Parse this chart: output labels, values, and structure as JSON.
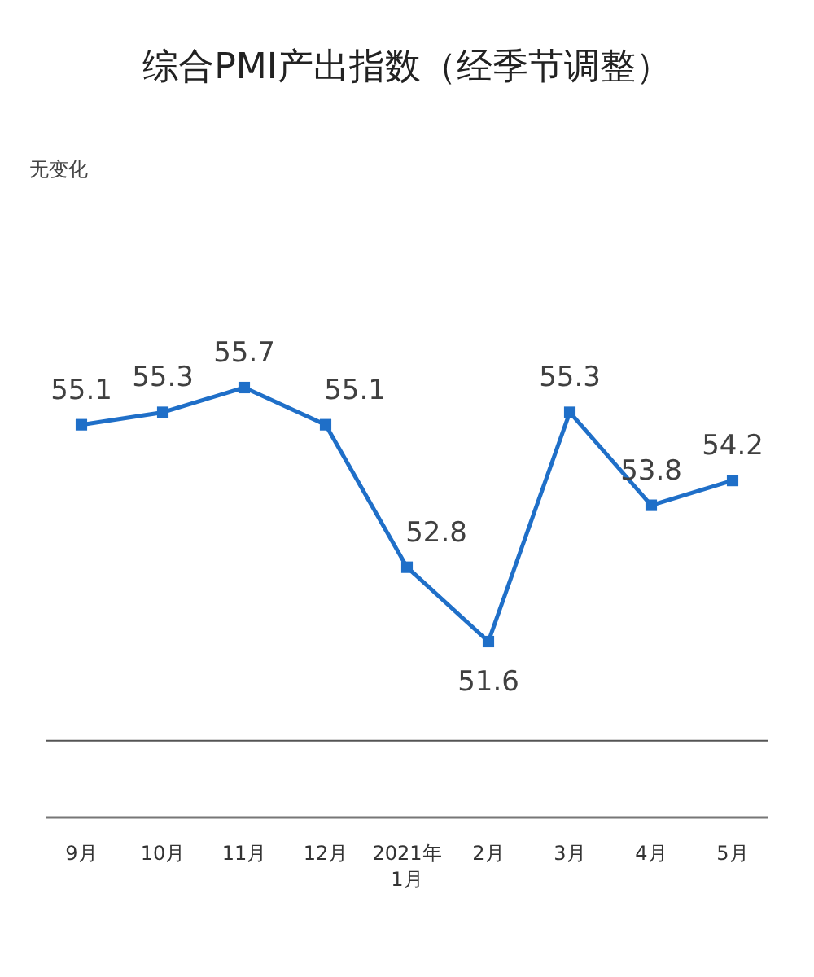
{
  "chart_data": {
    "type": "line",
    "title": "综合PMI产出指数（经季节调整）",
    "subtitle": "无变化",
    "categories": [
      "9月",
      "10月",
      "11月",
      "12月",
      "2021年\n1月",
      "2月",
      "3月",
      "4月",
      "5月"
    ],
    "series": [
      {
        "color": "#1f6fc8",
        "values": [
          55.1,
          55.3,
          55.7,
          55.1,
          52.8,
          51.6,
          55.3,
          53.8,
          54.2
        ]
      }
    ],
    "tick_labels": "x",
    "marker": "square",
    "data_labels": true,
    "ref_lines": [
      {
        "axis": "y",
        "value": 50,
        "color": "#555555"
      }
    ]
  }
}
